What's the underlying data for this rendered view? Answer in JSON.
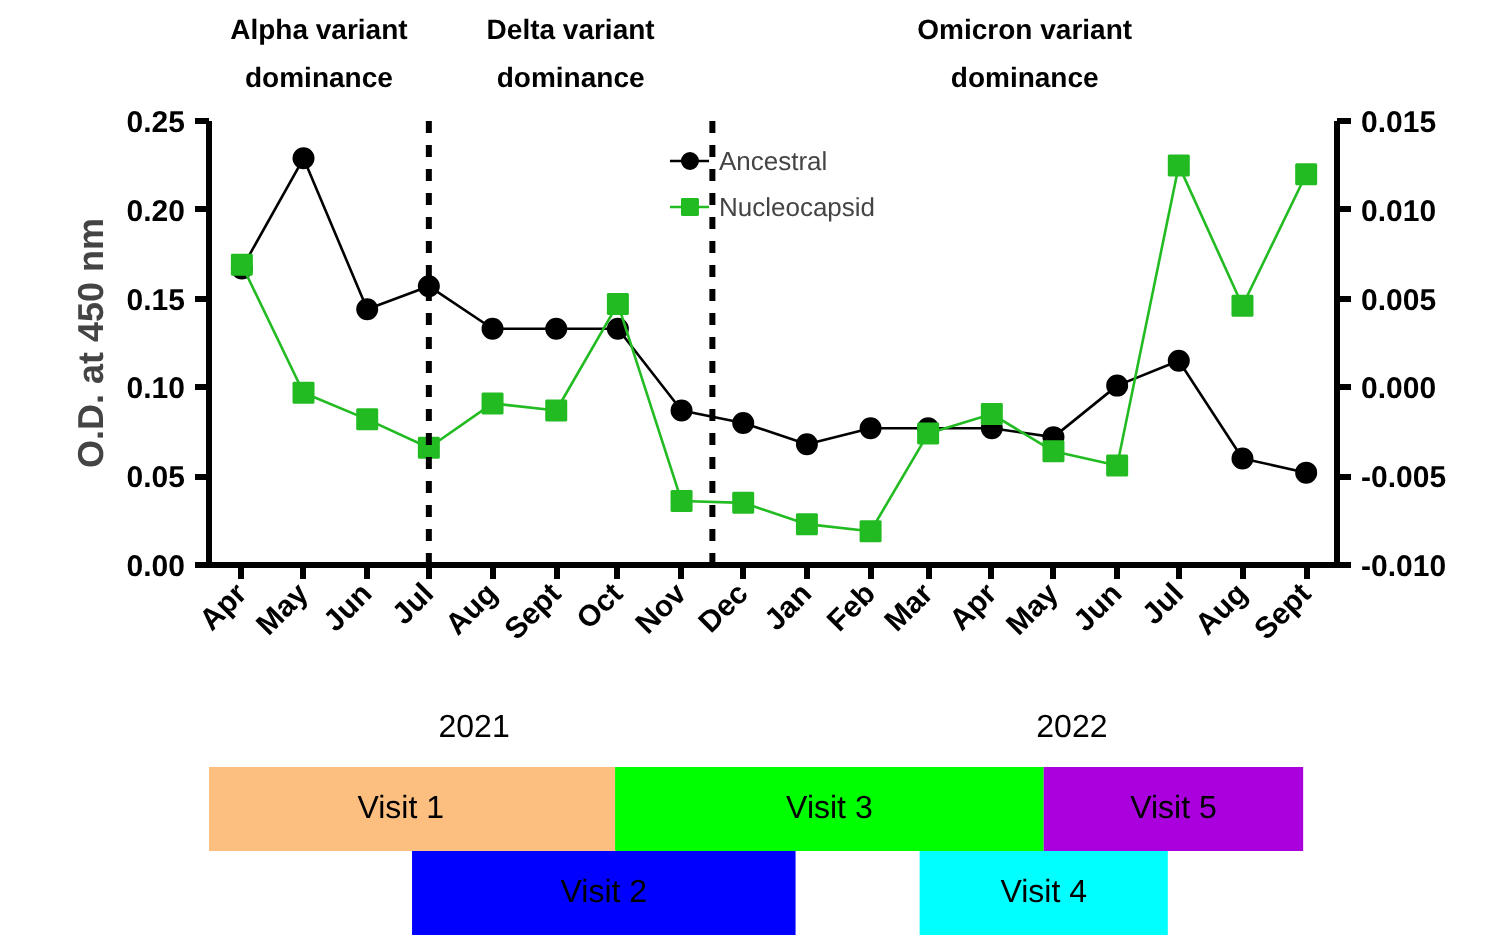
{
  "chart_data": [
    {
      "type": "line",
      "ylabel": "O.D. at 450 nm",
      "x": [
        "2021-04",
        "2021-05",
        "2021-06",
        "2021-07",
        "2021-08",
        "2021-09",
        "2021-10",
        "2021-11",
        "2021-12",
        "2022-01",
        "2022-02",
        "2022-03",
        "2022-04",
        "2022-05",
        "2022-06",
        "2022-07",
        "2022-08",
        "2022-09"
      ],
      "series": [
        {
          "name": "Ancestral",
          "color": "#000000",
          "marker": "circle",
          "values": [
            0.167,
            0.229,
            0.144,
            0.157,
            0.133,
            0.133,
            0.133,
            0.087,
            0.08,
            0.068,
            0.077,
            0.077,
            0.077,
            0.072,
            0.101,
            0.115,
            0.06,
            0.052
          ]
        },
        {
          "name": "Nucleocapsid",
          "color": "#22bb22",
          "marker": "square",
          "axis": "y2",
          "values": [
            0.0069,
            -0.0003,
            -0.0018,
            -0.0034,
            -0.0009,
            -0.0013,
            0.0047,
            -0.0064,
            -0.0065,
            -0.0077,
            -0.0081,
            -0.0026,
            -0.0015,
            -0.0036,
            -0.0044,
            0.0125,
            0.0046,
            0.012
          ]
        }
      ],
      "xlim": [
        "2021-03-16",
        "2022-09-16"
      ],
      "xticks": [
        {
          "value": "2021-04",
          "label": "Apr"
        },
        {
          "value": "2021-05",
          "label": "May"
        },
        {
          "value": "2021-06",
          "label": "Jun"
        },
        {
          "value": "2021-07",
          "label": "Jul"
        },
        {
          "value": "2021-08",
          "label": "Aug"
        },
        {
          "value": "2021-09",
          "label": "Sept"
        },
        {
          "value": "2021-10",
          "label": "Oct"
        },
        {
          "value": "2021-11",
          "label": "Nov"
        },
        {
          "value": "2021-12",
          "label": "Dec"
        },
        {
          "value": "2022-01",
          "label": "Jan"
        },
        {
          "value": "2022-02",
          "label": "Feb"
        },
        {
          "value": "2022-03",
          "label": "Mar"
        },
        {
          "value": "2022-04",
          "label": "Apr"
        },
        {
          "value": "2022-05",
          "label": "May"
        },
        {
          "value": "2022-06",
          "label": "Jun"
        },
        {
          "value": "2022-07",
          "label": "Jul"
        },
        {
          "value": "2022-08",
          "label": "Aug"
        },
        {
          "value": "2022-09",
          "label": "Sept"
        }
      ],
      "ylim": [
        0,
        0.25
      ],
      "yticks": [
        {
          "value": 0,
          "label": "0.00"
        },
        {
          "value": 0.05,
          "label": "0.05"
        },
        {
          "value": 0.1,
          "label": "0.10"
        },
        {
          "value": 0.15,
          "label": "0.15"
        },
        {
          "value": 0.2,
          "label": "0.20"
        },
        {
          "value": 0.25,
          "label": "0.25"
        }
      ],
      "y2lim": [
        -0.01,
        0.015
      ],
      "y2ticks": [
        {
          "value": -0.01,
          "label": "-0.010"
        },
        {
          "value": -0.005,
          "label": "-0.005"
        },
        {
          "value": 0,
          "label": "0.000"
        },
        {
          "value": 0.005,
          "label": "0.005"
        },
        {
          "value": 0.01,
          "label": "0.010"
        },
        {
          "value": 0.015,
          "label": "0.015"
        }
      ],
      "ref_lines": [
        {
          "axis": "x",
          "value": "2021-07",
          "line_style": "dashed",
          "color": "#000000"
        },
        {
          "axis": "x",
          "value": "2021-11-16",
          "line_style": "dashed",
          "color": "#000000"
        }
      ],
      "annotations": [
        "Alpha variant dominance",
        "Delta variant dominance",
        "Omicron variant dominance"
      ],
      "grid": false,
      "legend": "top"
    },
    {
      "type": "other",
      "annotations": [
        "2021",
        "2022",
        "Visit 1",
        "Visit 2",
        "Visit 3",
        "Visit 4",
        "Visit 5"
      ],
      "colors": [
        null,
        null,
        "#fdbf80",
        "#0000ff",
        "#00ff00",
        "#00ffff",
        "#aa00dd"
      ]
    }
  ]
}
